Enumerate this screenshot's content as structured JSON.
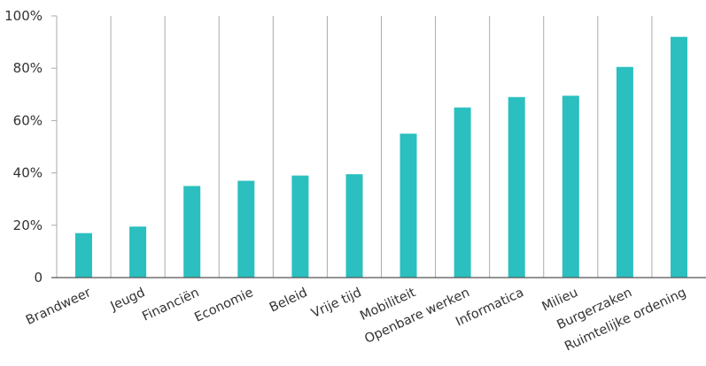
{
  "chart_data": {
    "type": "bar",
    "title": "",
    "xlabel": "",
    "ylabel": "",
    "categories": [
      "Brandweer",
      "Jeugd",
      "Financiën",
      "Economie",
      "Beleid",
      "Vrije tijd",
      "Mobiliteit",
      "Openbare werken",
      "Informatica",
      "Milieu",
      "Burgerzaken",
      "Ruimtelijke ordening"
    ],
    "values": [
      17,
      19.5,
      35,
      37,
      39,
      39.5,
      55,
      65,
      69,
      69.5,
      80.5,
      92
    ],
    "ylim": [
      0,
      100
    ],
    "yticks": [
      0,
      20,
      40,
      60,
      80,
      100
    ],
    "ytick_labels": [
      "0",
      "20%",
      "40%",
      "60%",
      "80%",
      "100%"
    ],
    "grid": "vertical category separators",
    "bar_color": "#2bbfbf",
    "grid_color": "#aaaaaa",
    "text_color": "#333333"
  }
}
